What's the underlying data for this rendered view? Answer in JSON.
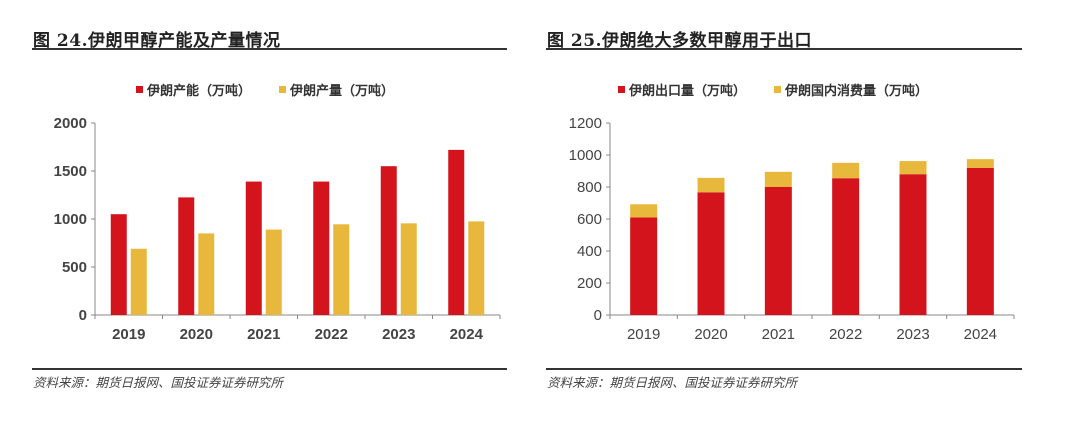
{
  "colors": {
    "red": "#D3141C",
    "gold": "#E8B83C",
    "axis": "#888888"
  },
  "source_text": "资料来源：期货日报网、国投证券证券研究所",
  "chart_data": [
    {
      "type": "bar",
      "title": "图 24.伊朗甲醇产能及产量情况",
      "xlabel": "",
      "ylabel": "",
      "categories": [
        "2019",
        "2020",
        "2021",
        "2022",
        "2023",
        "2024"
      ],
      "series": [
        {
          "name": "伊朗产能（万吨）",
          "values": [
            1050,
            1225,
            1390,
            1390,
            1550,
            1720
          ]
        },
        {
          "name": "伊朗产量（万吨）",
          "values": [
            690,
            850,
            890,
            945,
            955,
            975
          ]
        }
      ],
      "ylim": [
        0,
        2000
      ],
      "yticks": [
        "0",
        "500",
        "1000",
        "1500",
        "2000"
      ],
      "grid": false,
      "legend": "top-center",
      "stacked": false
    },
    {
      "type": "bar",
      "title": "图 25.伊朗绝大多数甲醇用于出口",
      "xlabel": "",
      "ylabel": "",
      "categories": [
        "2019",
        "2020",
        "2021",
        "2022",
        "2023",
        "2024"
      ],
      "series": [
        {
          "name": "伊朗出口量（万吨）",
          "values": [
            610,
            767,
            800,
            855,
            880,
            920
          ]
        },
        {
          "name": "伊朗国内消费量（万吨）",
          "values": [
            82,
            90,
            95,
            96,
            82,
            54
          ]
        }
      ],
      "ylim": [
        0,
        1200
      ],
      "yticks": [
        "0",
        "200",
        "400",
        "600",
        "800",
        "1000",
        "1200"
      ],
      "grid": false,
      "legend": "top-center",
      "stacked": true
    }
  ]
}
